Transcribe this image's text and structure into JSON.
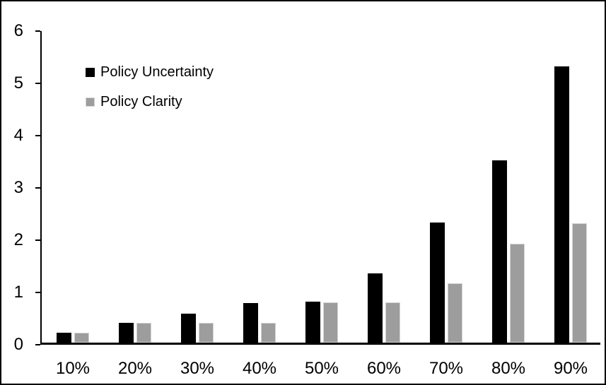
{
  "chart_data": {
    "type": "bar",
    "title": "",
    "xlabel": "",
    "ylabel": "",
    "categories": [
      "10%",
      "20%",
      "30%",
      "40%",
      "50%",
      "60%",
      "70%",
      "80%",
      "90%"
    ],
    "series": [
      {
        "name": "Policy Uncertainty",
        "color": "#000000",
        "values": [
          0.19,
          0.38,
          0.56,
          0.76,
          0.78,
          1.33,
          2.3,
          3.48,
          5.28
        ]
      },
      {
        "name": "Policy Clarity",
        "color": "#9d9d9d",
        "border_color": "#d4d4d4",
        "values": [
          0.19,
          0.38,
          0.38,
          0.38,
          0.77,
          0.77,
          1.14,
          1.89,
          2.29
        ]
      }
    ],
    "ylim": [
      0,
      6
    ],
    "yticks": [
      0,
      1,
      2,
      3,
      4,
      5,
      6
    ],
    "grid": false,
    "legend_position": "top-left",
    "frame_color": "#000000",
    "background_color": "#ffffff"
  }
}
